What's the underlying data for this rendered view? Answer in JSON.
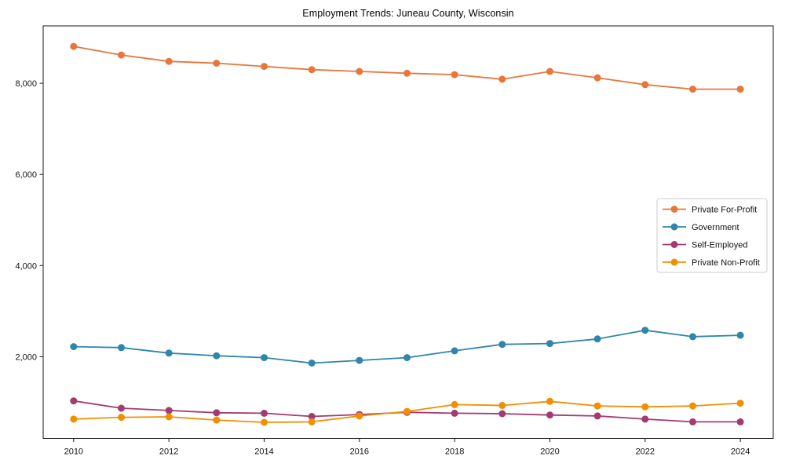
{
  "chart_data": {
    "type": "line",
    "title": "Employment Trends: Juneau County, Wisconsin",
    "xlabel": "",
    "ylabel": "",
    "x": [
      2010,
      2011,
      2012,
      2013,
      2014,
      2015,
      2016,
      2017,
      2018,
      2019,
      2020,
      2021,
      2022,
      2023,
      2024
    ],
    "series": [
      {
        "name": "Private For-Profit",
        "color": "#E8763B",
        "values": [
          8810,
          8620,
          8480,
          8440,
          8370,
          8300,
          8260,
          8220,
          8190,
          8090,
          8260,
          8120,
          7970,
          7870,
          7870
        ]
      },
      {
        "name": "Government",
        "color": "#2E86AB",
        "values": [
          2220,
          2200,
          2080,
          2020,
          1980,
          1860,
          1920,
          1980,
          2130,
          2270,
          2290,
          2390,
          2580,
          2440,
          2470
        ]
      },
      {
        "name": "Self-Employed",
        "color": "#A23B72",
        "values": [
          1030,
          870,
          820,
          770,
          760,
          690,
          730,
          780,
          760,
          750,
          720,
          700,
          630,
          570,
          570
        ]
      },
      {
        "name": "Private Non-Profit",
        "color": "#F18F01",
        "values": [
          630,
          670,
          680,
          610,
          560,
          570,
          700,
          800,
          950,
          930,
          1020,
          920,
          900,
          920,
          980
        ]
      }
    ],
    "xticks": [
      2010,
      2012,
      2014,
      2016,
      2018,
      2020,
      2022,
      2024
    ],
    "xtick_labels": [
      "2010",
      "2012",
      "2014",
      "2016",
      "2018",
      "2020",
      "2022",
      "2024"
    ],
    "yticks": [
      2000,
      4000,
      6000,
      8000
    ],
    "ytick_labels": [
      "2,000",
      "4,000",
      "6,000",
      "8,000"
    ],
    "xlim": [
      2009.36,
      2024.69
    ],
    "ylim": [
      207,
      9259
    ],
    "grid": false,
    "marker": "circle",
    "legend_position": "center right",
    "spine_color": "#1a1a1a",
    "tick_text_color": "#111111",
    "legend_border_color": "#cccccc",
    "legend_background": "#ffffff"
  }
}
